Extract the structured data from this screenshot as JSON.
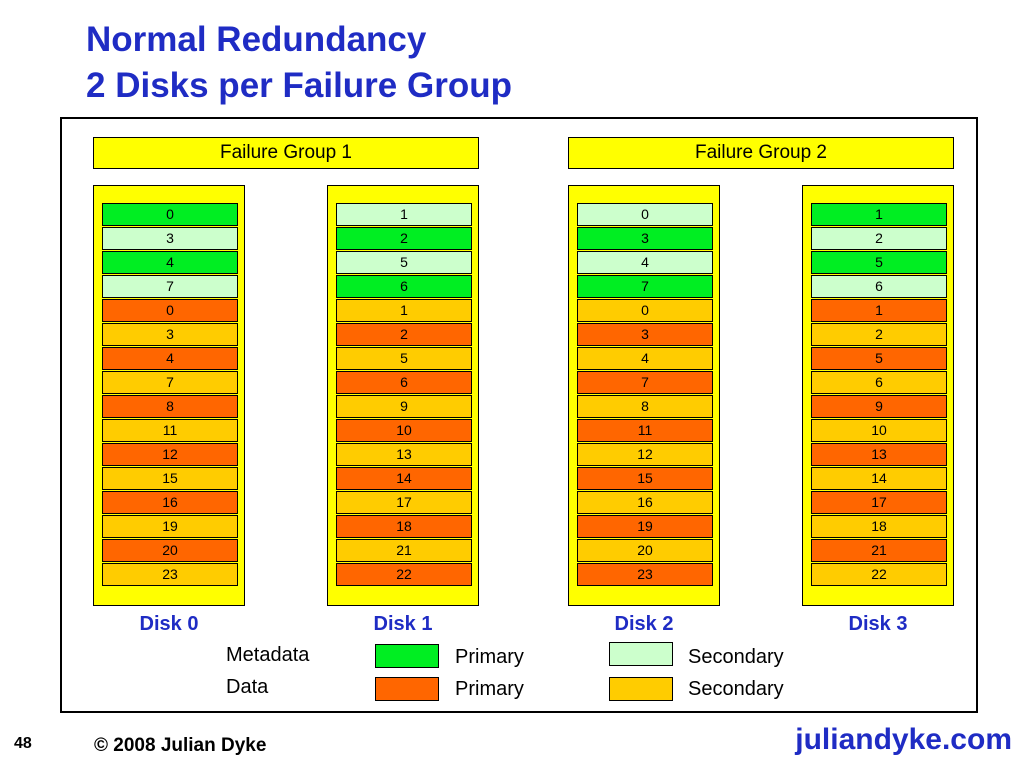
{
  "title_line1": "Normal Redundancy",
  "title_line2": "2 Disks per Failure Group",
  "failure_groups": [
    "Failure Group 1",
    "Failure Group 2"
  ],
  "colors": {
    "metadata_primary": "#00ee22",
    "metadata_secondary": "#ccffcc",
    "data_primary": "#ff6600",
    "data_secondary": "#ffcc00",
    "disk_background": "#ffff00",
    "title": "#1f2cc4"
  },
  "disks": [
    {
      "label": "Disk 0",
      "cells": [
        {
          "value": "0",
          "type": "metadata_primary"
        },
        {
          "value": "3",
          "type": "metadata_secondary"
        },
        {
          "value": "4",
          "type": "metadata_primary"
        },
        {
          "value": "7",
          "type": "metadata_secondary"
        },
        {
          "value": "0",
          "type": "data_primary"
        },
        {
          "value": "3",
          "type": "data_secondary"
        },
        {
          "value": "4",
          "type": "data_primary"
        },
        {
          "value": "7",
          "type": "data_secondary"
        },
        {
          "value": "8",
          "type": "data_primary"
        },
        {
          "value": "11",
          "type": "data_secondary"
        },
        {
          "value": "12",
          "type": "data_primary"
        },
        {
          "value": "15",
          "type": "data_secondary"
        },
        {
          "value": "16",
          "type": "data_primary"
        },
        {
          "value": "19",
          "type": "data_secondary"
        },
        {
          "value": "20",
          "type": "data_primary"
        },
        {
          "value": "23",
          "type": "data_secondary"
        }
      ]
    },
    {
      "label": "Disk 1",
      "cells": [
        {
          "value": "1",
          "type": "metadata_secondary"
        },
        {
          "value": "2",
          "type": "metadata_primary"
        },
        {
          "value": "5",
          "type": "metadata_secondary"
        },
        {
          "value": "6",
          "type": "metadata_primary"
        },
        {
          "value": "1",
          "type": "data_secondary"
        },
        {
          "value": "2",
          "type": "data_primary"
        },
        {
          "value": "5",
          "type": "data_secondary"
        },
        {
          "value": "6",
          "type": "data_primary"
        },
        {
          "value": "9",
          "type": "data_secondary"
        },
        {
          "value": "10",
          "type": "data_primary"
        },
        {
          "value": "13",
          "type": "data_secondary"
        },
        {
          "value": "14",
          "type": "data_primary"
        },
        {
          "value": "17",
          "type": "data_secondary"
        },
        {
          "value": "18",
          "type": "data_primary"
        },
        {
          "value": "21",
          "type": "data_secondary"
        },
        {
          "value": "22",
          "type": "data_primary"
        }
      ]
    },
    {
      "label": "Disk 2",
      "cells": [
        {
          "value": "0",
          "type": "metadata_secondary"
        },
        {
          "value": "3",
          "type": "metadata_primary"
        },
        {
          "value": "4",
          "type": "metadata_secondary"
        },
        {
          "value": "7",
          "type": "metadata_primary"
        },
        {
          "value": "0",
          "type": "data_secondary"
        },
        {
          "value": "3",
          "type": "data_primary"
        },
        {
          "value": "4",
          "type": "data_secondary"
        },
        {
          "value": "7",
          "type": "data_primary"
        },
        {
          "value": "8",
          "type": "data_secondary"
        },
        {
          "value": "11",
          "type": "data_primary"
        },
        {
          "value": "12",
          "type": "data_secondary"
        },
        {
          "value": "15",
          "type": "data_primary"
        },
        {
          "value": "16",
          "type": "data_secondary"
        },
        {
          "value": "19",
          "type": "data_primary"
        },
        {
          "value": "20",
          "type": "data_secondary"
        },
        {
          "value": "23",
          "type": "data_primary"
        }
      ]
    },
    {
      "label": "Disk 3",
      "cells": [
        {
          "value": "1",
          "type": "metadata_primary"
        },
        {
          "value": "2",
          "type": "metadata_secondary"
        },
        {
          "value": "5",
          "type": "metadata_primary"
        },
        {
          "value": "6",
          "type": "metadata_secondary"
        },
        {
          "value": "1",
          "type": "data_primary"
        },
        {
          "value": "2",
          "type": "data_secondary"
        },
        {
          "value": "5",
          "type": "data_primary"
        },
        {
          "value": "6",
          "type": "data_secondary"
        },
        {
          "value": "9",
          "type": "data_primary"
        },
        {
          "value": "10",
          "type": "data_secondary"
        },
        {
          "value": "13",
          "type": "data_primary"
        },
        {
          "value": "14",
          "type": "data_secondary"
        },
        {
          "value": "17",
          "type": "data_primary"
        },
        {
          "value": "18",
          "type": "data_secondary"
        },
        {
          "value": "21",
          "type": "data_primary"
        },
        {
          "value": "22",
          "type": "data_secondary"
        }
      ]
    }
  ],
  "legend": {
    "metadata_label": "Metadata",
    "data_label": "Data",
    "primary_label": "Primary",
    "secondary_label": "Secondary"
  },
  "footer": {
    "page_number": "48",
    "copyright": "© 2008 Julian Dyke",
    "site": "juliandyke.com"
  }
}
